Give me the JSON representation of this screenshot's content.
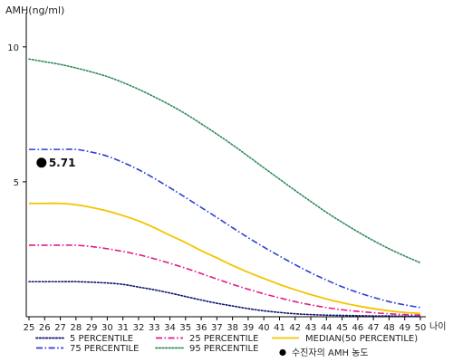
{
  "chart_data": {
    "type": "line",
    "ylabel": "AMH(ng/ml)",
    "xlabel": "나이",
    "x": [
      25,
      26,
      27,
      28,
      29,
      30,
      31,
      32,
      33,
      34,
      35,
      36,
      37,
      38,
      39,
      40,
      41,
      42,
      43,
      44,
      45,
      46,
      47,
      48,
      49,
      50
    ],
    "x_tick_labels": [
      "25",
      "26",
      "27",
      "28",
      "29",
      "30",
      "31",
      "32",
      "33",
      "34",
      "35",
      "36",
      "37",
      "38",
      "39",
      "40",
      "41",
      "42",
      "43",
      "44",
      "45",
      "46",
      "47",
      "48",
      "49",
      "50"
    ],
    "y_ticks": [
      5,
      10
    ],
    "y_tick_labels": [
      "5",
      "10"
    ],
    "ylim": [
      0,
      11
    ],
    "grid": false,
    "legend_position": "bottom",
    "series": [
      {
        "name": "5 PERCENTILE",
        "color": "#0d1170",
        "dash": "dotted",
        "values": [
          1.3,
          1.3,
          1.3,
          1.3,
          1.28,
          1.25,
          1.2,
          1.1,
          1.0,
          0.88,
          0.75,
          0.62,
          0.5,
          0.4,
          0.3,
          0.22,
          0.16,
          0.11,
          0.08,
          0.06,
          0.05,
          0.04,
          0.03,
          0.03,
          0.02,
          0.02
        ]
      },
      {
        "name": "25 PERCENTILE",
        "color": "#e0198a",
        "dash": "dashdot",
        "values": [
          2.65,
          2.65,
          2.65,
          2.65,
          2.6,
          2.52,
          2.42,
          2.3,
          2.15,
          1.98,
          1.8,
          1.6,
          1.4,
          1.2,
          1.02,
          0.85,
          0.7,
          0.56,
          0.44,
          0.34,
          0.26,
          0.2,
          0.15,
          0.11,
          0.08,
          0.06
        ]
      },
      {
        "name": "MEDIAN(50 PERCENTILE)",
        "color": "#f4c400",
        "dash": "solid",
        "values": [
          4.2,
          4.2,
          4.2,
          4.15,
          4.05,
          3.92,
          3.75,
          3.55,
          3.3,
          3.02,
          2.75,
          2.45,
          2.18,
          1.9,
          1.65,
          1.42,
          1.2,
          1.0,
          0.82,
          0.66,
          0.52,
          0.4,
          0.3,
          0.22,
          0.16,
          0.12
        ]
      },
      {
        "name": "75 PERCENTILE",
        "color": "#2b3fd0",
        "dash": "dashdot",
        "values": [
          6.2,
          6.2,
          6.2,
          6.2,
          6.1,
          5.95,
          5.72,
          5.45,
          5.13,
          4.78,
          4.42,
          4.05,
          3.68,
          3.3,
          2.93,
          2.58,
          2.25,
          1.93,
          1.63,
          1.36,
          1.11,
          0.9,
          0.72,
          0.56,
          0.44,
          0.34
        ]
      },
      {
        "name": "95 PERCENTILE",
        "color": "#2f8a5a",
        "dash": "dotted",
        "values": [
          9.55,
          9.45,
          9.35,
          9.22,
          9.07,
          8.9,
          8.68,
          8.43,
          8.15,
          7.85,
          7.52,
          7.15,
          6.77,
          6.37,
          5.95,
          5.52,
          5.1,
          4.68,
          4.27,
          3.87,
          3.5,
          3.15,
          2.82,
          2.52,
          2.25,
          2.0
        ]
      }
    ],
    "points": [
      {
        "name": "수진자의 AMH 농도",
        "x": 25.8,
        "y": 5.71,
        "label": "5.71",
        "color": "#000000"
      }
    ]
  }
}
